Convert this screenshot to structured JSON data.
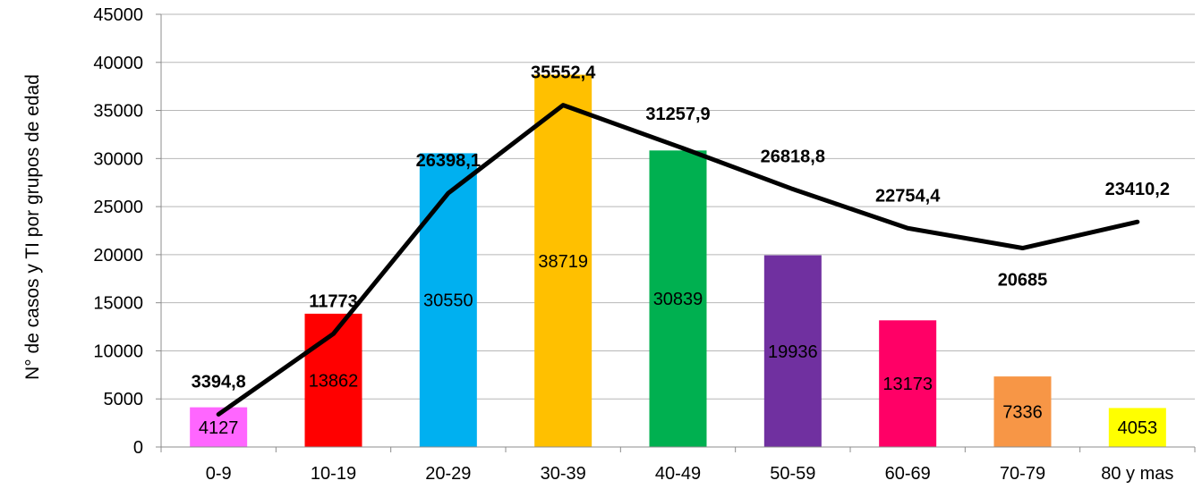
{
  "chart_data": {
    "type": "bar",
    "title": "",
    "xlabel": "",
    "ylabel": "N° de casos y TI por grupos de edad",
    "ylim": [
      0,
      45000
    ],
    "y_ticks": [
      0,
      5000,
      10000,
      15000,
      20000,
      25000,
      30000,
      35000,
      40000,
      45000
    ],
    "grid": true,
    "categories": [
      "0-9",
      "10-19",
      "20-29",
      "30-39",
      "40-49",
      "50-59",
      "60-69",
      "70-79",
      "80 y mas"
    ],
    "series": [
      {
        "type": "bar",
        "values": [
          4127,
          13862,
          30550,
          38719,
          30839,
          19936,
          13173,
          7336,
          4053
        ],
        "labels": [
          "4127",
          "13862",
          "30550",
          "38719",
          "30839",
          "19936",
          "13173",
          "7336",
          "4053"
        ],
        "colors": [
          "#ff66ff",
          "#ff0000",
          "#00b0f0",
          "#ffc000",
          "#00b050",
          "#7030a0",
          "#ff0066",
          "#f79646",
          "#ffff00"
        ]
      },
      {
        "type": "line",
        "color": "#000000",
        "values": [
          3394.8,
          11773,
          26398.1,
          35552.4,
          31257.9,
          26818.8,
          22754.4,
          20685,
          23410.2
        ],
        "labels": [
          "3394,8",
          "11773",
          "26398,1",
          "35552,4",
          "31257,9",
          "26818,8",
          "22754,4",
          "20685",
          "23410,2"
        ]
      }
    ]
  }
}
